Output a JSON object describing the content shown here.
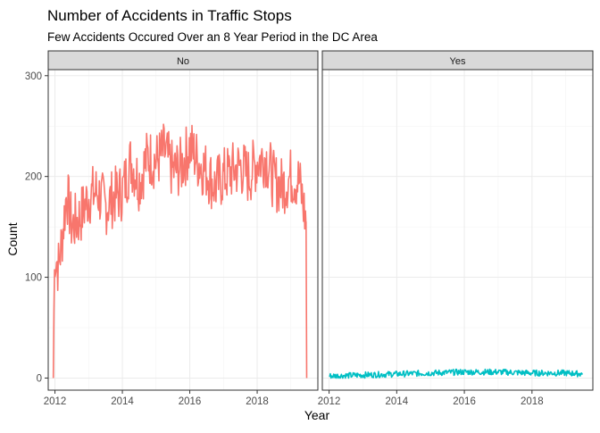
{
  "title": "Number of Accidents in Traffic Stops",
  "subtitle": "Few Accidents Occured Over an 8 Year Period in the DC Area",
  "chart_data": {
    "type": "line",
    "title": "Number of Accidents in Traffic Stops",
    "subtitle": "Few Accidents Occured Over an 8 Year Period in the DC Area",
    "xlabel": "Year",
    "ylabel": "Count",
    "xlim": [
      2011.8,
      2019.8
    ],
    "ylim": [
      -12,
      306
    ],
    "x_ticks": [
      2012,
      2014,
      2016,
      2018
    ],
    "y_ticks": [
      0,
      100,
      200,
      300
    ],
    "grid": true,
    "legend": "none",
    "facets": [
      {
        "label": "No",
        "color": "#F8766D",
        "anchors": [
          [
            2011.95,
            0
          ],
          [
            2011.97,
            70
          ],
          [
            2012.0,
            125
          ],
          [
            2012.1,
            110
          ],
          [
            2012.2,
            135
          ],
          [
            2012.35,
            185
          ],
          [
            2012.5,
            150
          ],
          [
            2012.75,
            160
          ],
          [
            2013.0,
            180
          ],
          [
            2013.25,
            185
          ],
          [
            2013.5,
            170
          ],
          [
            2013.75,
            180
          ],
          [
            2014.0,
            185
          ],
          [
            2014.25,
            215
          ],
          [
            2014.5,
            195
          ],
          [
            2014.75,
            220
          ],
          [
            2015.0,
            215
          ],
          [
            2015.25,
            225
          ],
          [
            2015.5,
            205
          ],
          [
            2015.75,
            210
          ],
          [
            2016.0,
            230
          ],
          [
            2016.25,
            215
          ],
          [
            2016.5,
            205
          ],
          [
            2016.75,
            190
          ],
          [
            2017.0,
            200
          ],
          [
            2017.25,
            205
          ],
          [
            2017.5,
            210
          ],
          [
            2017.75,
            200
          ],
          [
            2018.0,
            215
          ],
          [
            2018.25,
            220
          ],
          [
            2018.5,
            195
          ],
          [
            2018.75,
            190
          ],
          [
            2019.0,
            200
          ],
          [
            2019.25,
            195
          ],
          [
            2019.4,
            165
          ],
          [
            2019.45,
            155
          ],
          [
            2019.47,
            0
          ]
        ],
        "amplitude": 30,
        "points_per_year": 52
      },
      {
        "label": "Yes",
        "color": "#00BFC4",
        "anchors": [
          [
            2012.0,
            2
          ],
          [
            2013.0,
            3
          ],
          [
            2014.0,
            4
          ],
          [
            2015.0,
            5
          ],
          [
            2016.0,
            6
          ],
          [
            2017.0,
            6
          ],
          [
            2018.0,
            5
          ],
          [
            2019.0,
            5
          ],
          [
            2019.5,
            4
          ]
        ],
        "amplitude": 3,
        "points_per_year": 52
      }
    ]
  }
}
